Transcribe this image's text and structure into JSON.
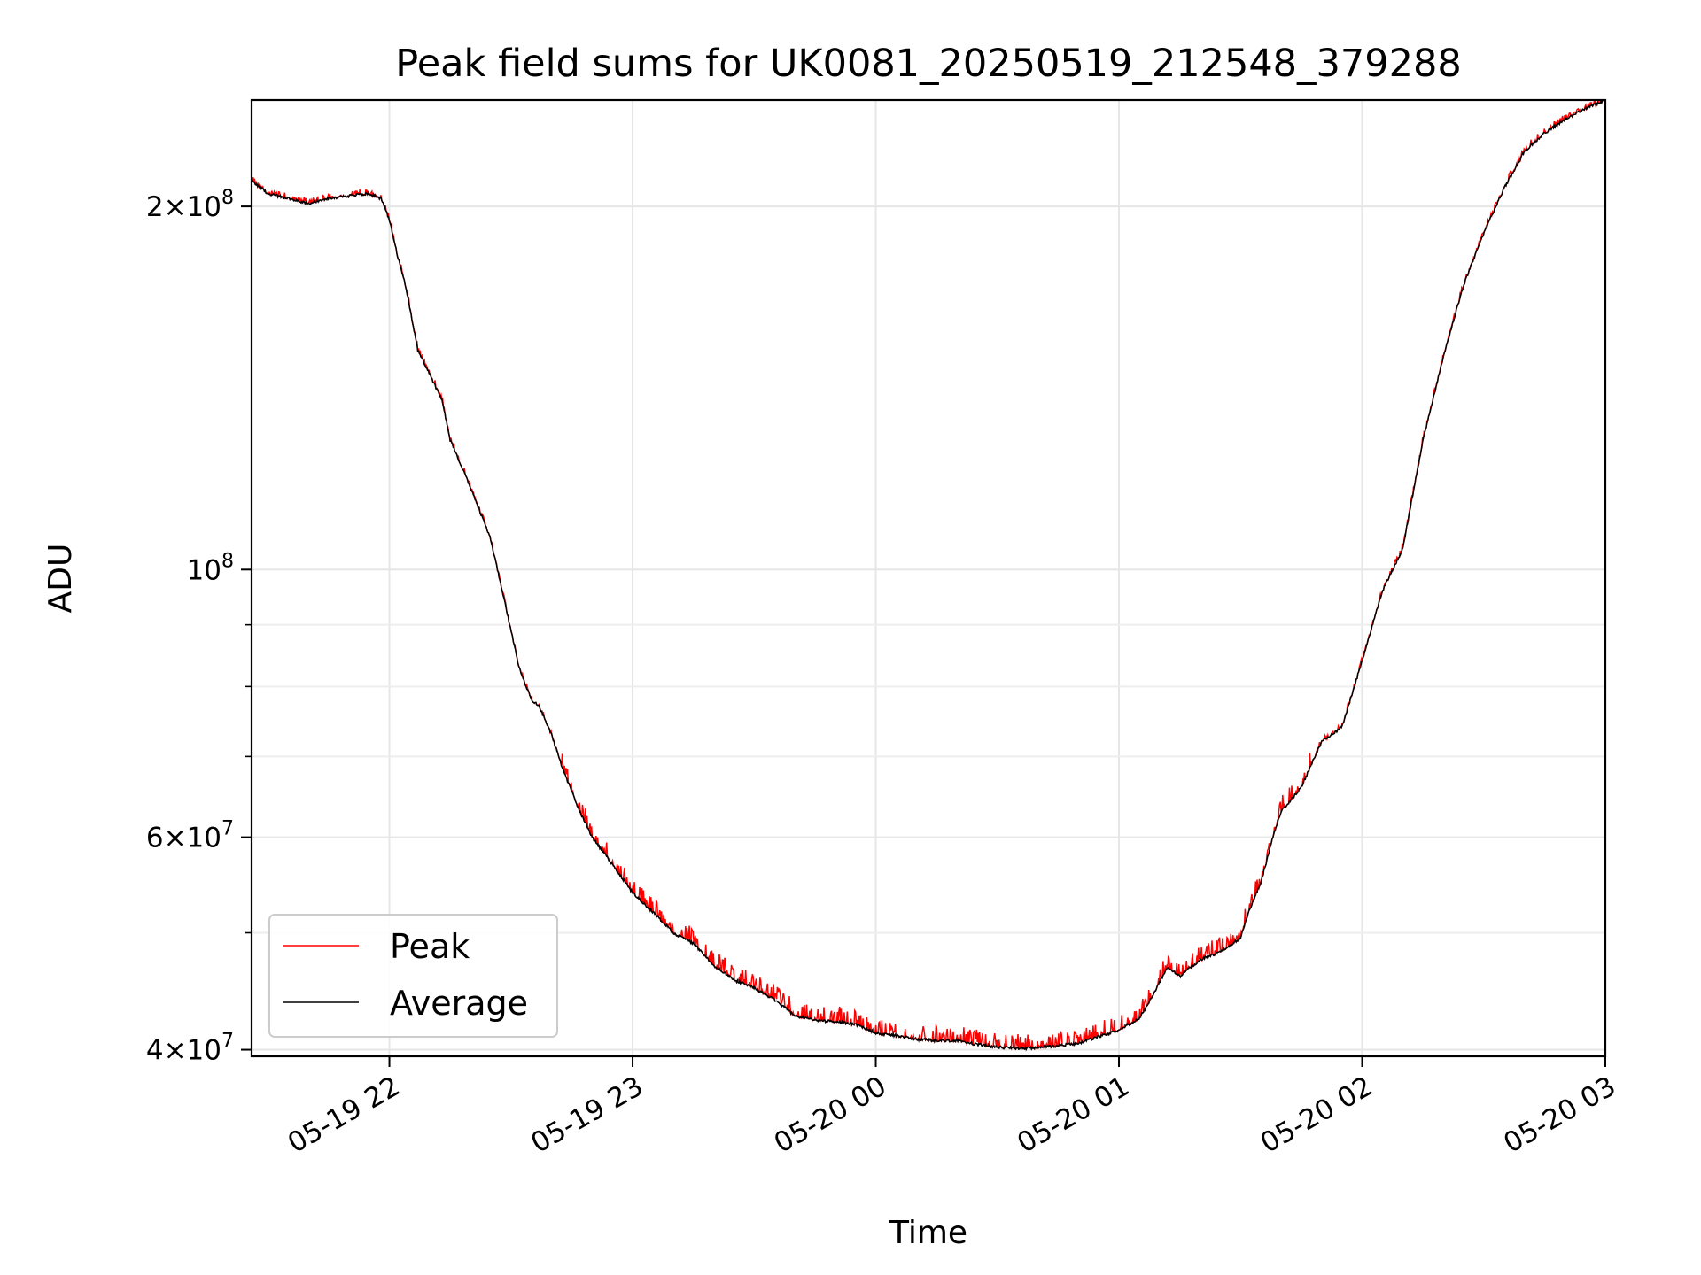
{
  "chart_data": {
    "type": "line",
    "title": "Peak field sums for UK0081_20250519_212548_379288",
    "xlabel": "Time",
    "ylabel": "ADU",
    "y_scale": "log",
    "ylim": [
      39500000,
      245000000
    ],
    "xlim": [
      "2025-05-19 21:26",
      "2025-05-20 03:00"
    ],
    "x_ticks": [
      {
        "t": "2025-05-19 22:00",
        "label": "05-19 22"
      },
      {
        "t": "2025-05-19 23:00",
        "label": "05-19 23"
      },
      {
        "t": "2025-05-20 00:00",
        "label": "05-20 00"
      },
      {
        "t": "2025-05-20 01:00",
        "label": "05-20 01"
      },
      {
        "t": "2025-05-20 02:00",
        "label": "05-20 02"
      },
      {
        "t": "2025-05-20 03:00",
        "label": "05-20 03"
      }
    ],
    "y_ticks": [
      {
        "value": 40000000,
        "base": "4",
        "exp": "7"
      },
      {
        "value": 60000000,
        "base": "6",
        "exp": "7"
      },
      {
        "value": 100000000,
        "base": "",
        "exp": "8"
      },
      {
        "value": 200000000,
        "base": "2",
        "exp": "8"
      }
    ],
    "y_minor_ticks": [
      50000000,
      70000000,
      80000000,
      90000000
    ],
    "grid": true,
    "legend": {
      "placement": "lower-left"
    },
    "series": [
      {
        "name": "Peak",
        "color": "#ff0000",
        "style": "noisy-upper",
        "x": [],
        "values": []
      },
      {
        "name": "Average",
        "color": "#000000",
        "style": "smooth",
        "x": [
          "2025-05-19 21:26",
          "2025-05-19 21:30",
          "2025-05-19 21:35",
          "2025-05-19 21:40",
          "2025-05-19 21:45",
          "2025-05-19 21:50",
          "2025-05-19 21:55",
          "2025-05-19 21:58",
          "2025-05-19 22:00",
          "2025-05-19 22:02",
          "2025-05-19 22:04",
          "2025-05-19 22:05",
          "2025-05-19 22:07",
          "2025-05-19 22:10",
          "2025-05-19 22:13",
          "2025-05-19 22:15",
          "2025-05-19 22:20",
          "2025-05-19 22:25",
          "2025-05-19 22:30",
          "2025-05-19 22:32",
          "2025-05-19 22:35",
          "2025-05-19 22:37",
          "2025-05-19 22:40",
          "2025-05-19 22:43",
          "2025-05-19 22:47",
          "2025-05-19 22:50",
          "2025-05-19 22:55",
          "2025-05-19 23:00",
          "2025-05-19 23:05",
          "2025-05-19 23:10",
          "2025-05-19 23:15",
          "2025-05-19 23:20",
          "2025-05-19 23:25",
          "2025-05-19 23:30",
          "2025-05-19 23:35",
          "2025-05-19 23:40",
          "2025-05-19 23:45",
          "2025-05-19 23:50",
          "2025-05-19 23:55",
          "2025-05-20 00:00",
          "2025-05-20 00:05",
          "2025-05-20 00:10",
          "2025-05-20 00:15",
          "2025-05-20 00:20",
          "2025-05-20 00:25",
          "2025-05-20 00:30",
          "2025-05-20 00:35",
          "2025-05-20 00:40",
          "2025-05-20 00:45",
          "2025-05-20 00:50",
          "2025-05-20 00:55",
          "2025-05-20 01:00",
          "2025-05-20 01:05",
          "2025-05-20 01:07",
          "2025-05-20 01:10",
          "2025-05-20 01:12",
          "2025-05-20 01:15",
          "2025-05-20 01:20",
          "2025-05-20 01:25",
          "2025-05-20 01:30",
          "2025-05-20 01:32",
          "2025-05-20 01:35",
          "2025-05-20 01:38",
          "2025-05-20 01:40",
          "2025-05-20 01:45",
          "2025-05-20 01:50",
          "2025-05-20 01:55",
          "2025-05-20 02:00",
          "2025-05-20 02:05",
          "2025-05-20 02:10",
          "2025-05-20 02:15",
          "2025-05-20 02:20",
          "2025-05-20 02:25",
          "2025-05-20 02:30",
          "2025-05-20 02:35",
          "2025-05-20 02:40",
          "2025-05-20 02:45",
          "2025-05-20 02:50",
          "2025-05-20 02:55",
          "2025-05-20 03:00"
        ],
        "values": [
          210000000,
          205000000,
          203000000,
          201000000,
          203000000,
          204000000,
          205000000,
          203000000,
          195000000,
          182000000,
          172000000,
          165000000,
          152000000,
          145000000,
          138000000,
          128000000,
          117000000,
          106000000,
          89000000,
          83000000,
          78000000,
          77000000,
          73000000,
          68000000,
          63000000,
          60000000,
          57000000,
          54000000,
          52000000,
          50000000,
          49000000,
          47000000,
          45700000,
          45000000,
          44000000,
          42700000,
          42300000,
          42200000,
          42000000,
          41300000,
          41100000,
          40800000,
          40700000,
          40700000,
          40400000,
          40200000,
          40100000,
          40150000,
          40300000,
          40500000,
          41000000,
          41500000,
          42500000,
          43500000,
          45500000,
          46800000,
          46000000,
          47500000,
          48200000,
          49500000,
          52000000,
          55000000,
          60000000,
          63000000,
          66000000,
          72000000,
          74000000,
          84000000,
          96000000,
          104000000,
          128000000,
          150000000,
          172000000,
          190000000,
          207000000,
          222000000,
          230000000,
          236000000,
          241000000,
          245000000
        ]
      }
    ]
  }
}
